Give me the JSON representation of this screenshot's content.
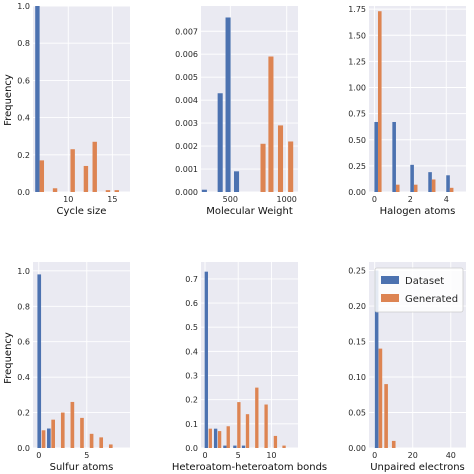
{
  "figure": {
    "ylabel": "Frequency",
    "legend": {
      "placement": "top-right",
      "panel": 5,
      "entries": [
        "Dataset",
        "Generated"
      ]
    },
    "colors": {
      "Dataset": "#4c72b0",
      "Generated": "#dd8452",
      "background": "#eaeaf2",
      "grid": "#ffffff"
    }
  },
  "chart_data": [
    {
      "type": "bar",
      "xlabel": "Cycle size",
      "grid": true,
      "xlim": [
        6,
        17
      ],
      "ylim": [
        0,
        1.0
      ],
      "xticks": [
        10,
        15
      ],
      "yticks": [
        0.0,
        0.2,
        0.4,
        0.6,
        0.8,
        1.0
      ],
      "xtick_labels": [
        "10",
        "15"
      ],
      "ytick_labels": [
        "0.0",
        "0.2",
        "0.4",
        "0.6",
        "0.8",
        "1.0"
      ],
      "bin_width": 0.5,
      "series": [
        {
          "name": "Dataset",
          "x": [
            6.5
          ],
          "values": [
            1.0
          ]
        },
        {
          "name": "Generated",
          "x": [
            7.0,
            8.5,
            10.5,
            12.0,
            13.0,
            14.5,
            15.5
          ],
          "values": [
            0.17,
            0.02,
            0.23,
            0.14,
            0.27,
            0.01,
            0.01
          ]
        }
      ]
    },
    {
      "type": "bar",
      "xlabel": "Molecular Weight",
      "grid": true,
      "xlim": [
        240,
        1100
      ],
      "ylim": [
        0,
        0.0081
      ],
      "xticks": [
        500,
        1000
      ],
      "yticks": [
        0.0,
        0.001,
        0.002,
        0.003,
        0.004,
        0.005,
        0.006,
        0.007
      ],
      "xtick_labels": [
        "500",
        "1000"
      ],
      "ytick_labels": [
        "0.000",
        "0.001",
        "0.002",
        "0.003",
        "0.004",
        "0.005",
        "0.006",
        "0.007"
      ],
      "bin_width": 45,
      "series": [
        {
          "name": "Dataset",
          "x": [
            270,
            410,
            480,
            555
          ],
          "values": [
            0.0001,
            0.0043,
            0.0076,
            0.0009
          ]
        },
        {
          "name": "Generated",
          "x": [
            790,
            860,
            945,
            1035
          ],
          "values": [
            0.0021,
            0.0059,
            0.0029,
            0.0022
          ]
        }
      ]
    },
    {
      "type": "bar",
      "xlabel": "Halogen atoms",
      "grid": true,
      "xlim": [
        -0.3,
        5.1
      ],
      "ylim": [
        0,
        1.78
      ],
      "xticks": [
        0,
        2,
        4
      ],
      "yticks": [
        0.0,
        0.25,
        0.5,
        0.75,
        1.0,
        1.25,
        1.5,
        1.75
      ],
      "xtick_labels": [
        "0",
        "2",
        "4"
      ],
      "ytick_labels": [
        "0.00",
        "0.25",
        "0.50",
        "0.75",
        "1.00",
        "1.25",
        "1.50",
        "1.75"
      ],
      "bin_width": 0.2,
      "series": [
        {
          "name": "Dataset",
          "x": [
            0.1,
            1.1,
            2.1,
            3.1,
            4.1
          ],
          "values": [
            0.67,
            0.67,
            0.26,
            0.19,
            0.16
          ]
        },
        {
          "name": "Generated",
          "x": [
            0.3,
            1.3,
            2.3,
            3.3,
            4.3
          ],
          "values": [
            1.73,
            0.07,
            0.07,
            0.12,
            0.04
          ]
        }
      ]
    },
    {
      "type": "bar",
      "xlabel": "Sulfur atoms",
      "grid": true,
      "xlim": [
        -0.6,
        9.5
      ],
      "ylim": [
        0,
        1.05
      ],
      "xticks": [
        0,
        5
      ],
      "yticks": [
        0.0,
        0.2,
        0.4,
        0.6,
        0.8,
        1.0
      ],
      "xtick_labels": [
        "0",
        "5"
      ],
      "ytick_labels": [
        "0.0",
        "0.2",
        "0.4",
        "0.6",
        "0.8",
        "1.0"
      ],
      "bin_width": 0.38,
      "series": [
        {
          "name": "Dataset",
          "x": [
            0.05,
            1.05
          ],
          "values": [
            0.98,
            0.11
          ]
        },
        {
          "name": "Generated",
          "x": [
            0.5,
            1.5,
            2.5,
            3.5,
            4.5,
            5.5,
            6.5,
            7.5
          ],
          "values": [
            0.1,
            0.16,
            0.2,
            0.26,
            0.17,
            0.08,
            0.06,
            0.02
          ]
        }
      ]
    },
    {
      "type": "bar",
      "xlabel": "Heteroatom-heteroatom bonds",
      "grid": true,
      "xlim": [
        -0.6,
        14.0
      ],
      "ylim": [
        0,
        0.77
      ],
      "xticks": [
        0,
        5,
        10
      ],
      "yticks": [
        0.0,
        0.1,
        0.2,
        0.3,
        0.4,
        0.5,
        0.6,
        0.7
      ],
      "xtick_labels": [
        "0",
        "5",
        "10"
      ],
      "ytick_labels": [
        "0.0",
        "0.1",
        "0.2",
        "0.3",
        "0.4",
        "0.5",
        "0.6",
        "0.7"
      ],
      "bin_width": 0.5,
      "series": [
        {
          "name": "Dataset",
          "x": [
            0.2,
            1.6,
            3.0,
            4.5,
            5.8
          ],
          "values": [
            0.73,
            0.08,
            0.01,
            0.01,
            0.01
          ]
        },
        {
          "name": "Generated",
          "x": [
            0.8,
            2.2,
            3.5,
            5.1,
            6.4,
            7.8,
            9.2,
            10.6,
            11.9
          ],
          "values": [
            0.08,
            0.07,
            0.09,
            0.19,
            0.14,
            0.25,
            0.18,
            0.05,
            0.01
          ]
        }
      ]
    },
    {
      "type": "bar",
      "xlabel": "Unpaired electrons",
      "grid": true,
      "xlim": [
        -3,
        48
      ],
      "ylim": [
        0,
        0.262
      ],
      "xticks": [
        0,
        20,
        40
      ],
      "yticks": [
        0.0,
        0.05,
        0.1,
        0.15,
        0.2,
        0.25
      ],
      "xtick_labels": [
        "0",
        "20",
        "40"
      ],
      "ytick_labels": [
        "0.00",
        "0.05",
        "0.10",
        "0.15",
        "0.20",
        "0.25"
      ],
      "bin_width": 1.9,
      "series": [
        {
          "name": "Dataset",
          "x": [
            1.0
          ],
          "values": [
            0.25
          ]
        },
        {
          "name": "Generated",
          "x": [
            3.0,
            6.0,
            10.0
          ],
          "values": [
            0.14,
            0.09,
            0.01
          ]
        }
      ]
    }
  ]
}
